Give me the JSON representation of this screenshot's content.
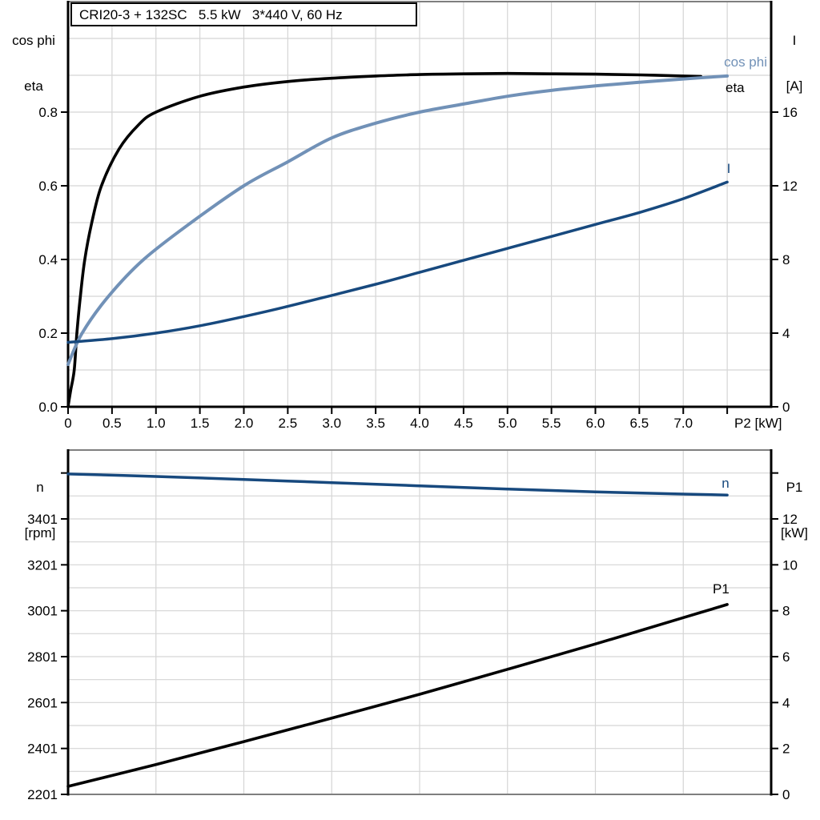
{
  "title_box": {
    "text": "CRI20-3 + 132SC   5.5 kW   3*440 V, 60 Hz"
  },
  "colors": {
    "eta": "#000000",
    "cos_phi": "#7191b7",
    "current": "#17497e",
    "speed": "#17497e",
    "p1": "#000000",
    "grid": "#d5d5d5",
    "frame_gray": "#7f7f7f",
    "axis_black": "#000000",
    "text": "#000000"
  },
  "labels": {
    "top_left_line1": "cos phi",
    "top_left_line2": "eta",
    "top_right_line1": "I",
    "top_right_line2": "[A]",
    "bottom_left_line1": "n",
    "bottom_left_line2": "[rpm]",
    "bottom_right_line1": "P1",
    "bottom_right_line2": "[kW]",
    "curve_cos_phi": "cos phi",
    "curve_eta": "eta",
    "curve_current": "I",
    "curve_n": "n",
    "curve_p1": "P1"
  },
  "chart_data": [
    {
      "type": "line",
      "title": "CRI20-3 + 132SC 5.5 kW 3*440 V, 60 Hz",
      "x": {
        "title": "P2 [kW]",
        "min": 0,
        "max": 8,
        "grid": 0.5,
        "ticks": [
          {
            "v": 0,
            "t": "0"
          },
          {
            "v": 0.5,
            "t": "0.5"
          },
          {
            "v": 1,
            "t": "1.0"
          },
          {
            "v": 1.5,
            "t": "1.5"
          },
          {
            "v": 2,
            "t": "2.0"
          },
          {
            "v": 2.5,
            "t": "2.5"
          },
          {
            "v": 3,
            "t": "3.0"
          },
          {
            "v": 3.5,
            "t": "3.5"
          },
          {
            "v": 4,
            "t": "4.0"
          },
          {
            "v": 4.5,
            "t": "4.5"
          },
          {
            "v": 5,
            "t": "5.0"
          },
          {
            "v": 5.5,
            "t": "5.5"
          },
          {
            "v": 6,
            "t": "6.0"
          },
          {
            "v": 6.5,
            "t": "6.5"
          },
          {
            "v": 7,
            "t": "7.0"
          },
          {
            "v": 7.5,
            "t": ""
          }
        ]
      },
      "y_left": {
        "title": "cos phi / eta",
        "min": 0,
        "max": 1.1,
        "grid": 0.1,
        "ticks": [
          {
            "v": 0,
            "t": "0.0"
          },
          {
            "v": 0.2,
            "t": "0.2"
          },
          {
            "v": 0.4,
            "t": "0.4"
          },
          {
            "v": 0.6,
            "t": "0.6"
          },
          {
            "v": 0.8,
            "t": "0.8"
          }
        ]
      },
      "y_right": {
        "title": "I [A]",
        "min": 0,
        "max": 22,
        "ticks": [
          {
            "v": 0,
            "t": "0"
          },
          {
            "v": 4,
            "t": "4"
          },
          {
            "v": 8,
            "t": "8"
          },
          {
            "v": 12,
            "t": "12"
          },
          {
            "v": 16,
            "t": "16"
          }
        ]
      },
      "legend": "labels at curve ends, no legend box",
      "series": [
        {
          "name": "eta",
          "axis": "left",
          "color": "#000000",
          "width": 3.6,
          "points": [
            [
              0,
              0
            ],
            [
              0.03,
              0.045
            ],
            [
              0.07,
              0.1
            ],
            [
              0.1,
              0.2
            ],
            [
              0.14,
              0.3
            ],
            [
              0.19,
              0.4
            ],
            [
              0.27,
              0.5
            ],
            [
              0.38,
              0.6
            ],
            [
              0.58,
              0.7
            ],
            [
              0.8,
              0.765
            ],
            [
              1.0,
              0.8
            ],
            [
              1.5,
              0.843
            ],
            [
              2.0,
              0.868
            ],
            [
              2.5,
              0.883
            ],
            [
              3.0,
              0.892
            ],
            [
              3.5,
              0.898
            ],
            [
              4.0,
              0.902
            ],
            [
              4.5,
              0.904
            ],
            [
              5.0,
              0.905
            ],
            [
              5.5,
              0.904
            ],
            [
              6.0,
              0.903
            ],
            [
              6.5,
              0.901
            ],
            [
              7.0,
              0.898
            ],
            [
              7.2,
              0.897
            ]
          ]
        },
        {
          "name": "cos phi",
          "axis": "left",
          "color": "#7191b7",
          "width": 4,
          "points": [
            [
              0,
              0.115
            ],
            [
              0.16,
              0.2
            ],
            [
              0.46,
              0.3
            ],
            [
              0.86,
              0.4
            ],
            [
              1.4,
              0.5
            ],
            [
              2.0,
              0.6
            ],
            [
              2.5,
              0.665
            ],
            [
              3.0,
              0.73
            ],
            [
              3.5,
              0.77
            ],
            [
              4.0,
              0.8
            ],
            [
              4.5,
              0.822
            ],
            [
              5.0,
              0.843
            ],
            [
              5.5,
              0.859
            ],
            [
              6.0,
              0.871
            ],
            [
              6.5,
              0.881
            ],
            [
              7.0,
              0.89
            ],
            [
              7.5,
              0.898
            ]
          ]
        },
        {
          "name": "I",
          "axis": "right",
          "color": "#17497e",
          "width": 3.5,
          "points": [
            [
              0,
              3.5
            ],
            [
              0.5,
              3.7
            ],
            [
              1.0,
              4.0
            ],
            [
              1.5,
              4.4
            ],
            [
              2.0,
              4.9
            ],
            [
              2.5,
              5.45
            ],
            [
              3.0,
              6.05
            ],
            [
              3.5,
              6.65
            ],
            [
              4.0,
              7.3
            ],
            [
              4.5,
              7.95
            ],
            [
              5.0,
              8.6
            ],
            [
              5.5,
              9.25
            ],
            [
              6.0,
              9.9
            ],
            [
              6.5,
              10.55
            ],
            [
              7.0,
              11.3
            ],
            [
              7.5,
              12.2
            ]
          ]
        }
      ]
    },
    {
      "type": "line",
      "title": "speed and input power vs P2",
      "x": {
        "title": "",
        "min": 0,
        "max": 8,
        "grid": 1.0,
        "ticks": []
      },
      "y_left": {
        "title": "n [rpm]",
        "min": 2201,
        "max": 3701,
        "grid": 100,
        "ticks": [
          {
            "v": 2201,
            "t": "2201"
          },
          {
            "v": 2401,
            "t": "2401"
          },
          {
            "v": 2601,
            "t": "2601"
          },
          {
            "v": 2801,
            "t": "2801"
          },
          {
            "v": 3001,
            "t": "3001"
          },
          {
            "v": 3201,
            "t": "3201"
          },
          {
            "v": 3401,
            "t": "3401"
          },
          {
            "v": 3601,
            "t": ""
          }
        ]
      },
      "y_right": {
        "title": "P1 [kW]",
        "min": 0,
        "max": 15,
        "ticks": [
          {
            "v": 0,
            "t": "0"
          },
          {
            "v": 2,
            "t": "2"
          },
          {
            "v": 4,
            "t": "4"
          },
          {
            "v": 6,
            "t": "6"
          },
          {
            "v": 8,
            "t": "8"
          },
          {
            "v": 10,
            "t": "10"
          },
          {
            "v": 12,
            "t": "12"
          },
          {
            "v": 14,
            "t": ""
          }
        ]
      },
      "series": [
        {
          "name": "n",
          "axis": "left",
          "color": "#17497e",
          "width": 3.5,
          "points": [
            [
              0,
              3597
            ],
            [
              1,
              3586
            ],
            [
              2,
              3573
            ],
            [
              3,
              3559
            ],
            [
              4,
              3545
            ],
            [
              5,
              3531
            ],
            [
              6,
              3519
            ],
            [
              7,
              3509
            ],
            [
              7.5,
              3505
            ]
          ]
        },
        {
          "name": "P1",
          "axis": "right",
          "color": "#000000",
          "width": 3.6,
          "points": [
            [
              0,
              0.35
            ],
            [
              1,
              1.3
            ],
            [
              2,
              2.3
            ],
            [
              3,
              3.32
            ],
            [
              4,
              4.36
            ],
            [
              5,
              5.45
            ],
            [
              6,
              6.55
            ],
            [
              7,
              7.7
            ],
            [
              7.5,
              8.27
            ]
          ]
        }
      ]
    }
  ]
}
